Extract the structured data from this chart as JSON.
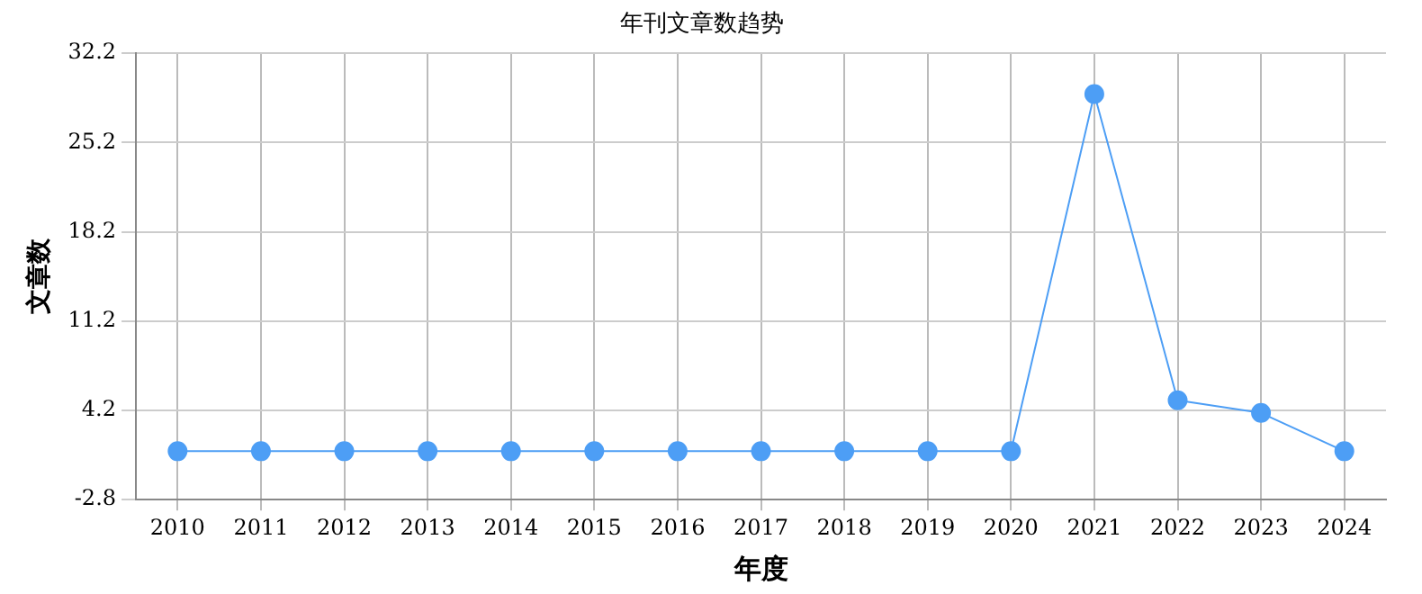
{
  "chart_data": {
    "type": "line",
    "title": "年刊文章数趋势",
    "xlabel": "年度",
    "ylabel": "文章数",
    "categories": [
      "2010",
      "2011",
      "2012",
      "2013",
      "2014",
      "2015",
      "2016",
      "2017",
      "2018",
      "2019",
      "2020",
      "2021",
      "2022",
      "2023",
      "2024"
    ],
    "series": [
      {
        "color": "#4d9ef5",
        "values": [
          1,
          1,
          1,
          1,
          1,
          1,
          1,
          1,
          1,
          1,
          1,
          29,
          5,
          4,
          1
        ]
      }
    ],
    "ylim": [
      -2.8,
      32.2
    ],
    "yticks": [
      -2.8,
      4.2,
      11.2,
      18.2,
      25.2,
      32.2
    ],
    "grid": true,
    "marker": "circle",
    "legend": false
  }
}
